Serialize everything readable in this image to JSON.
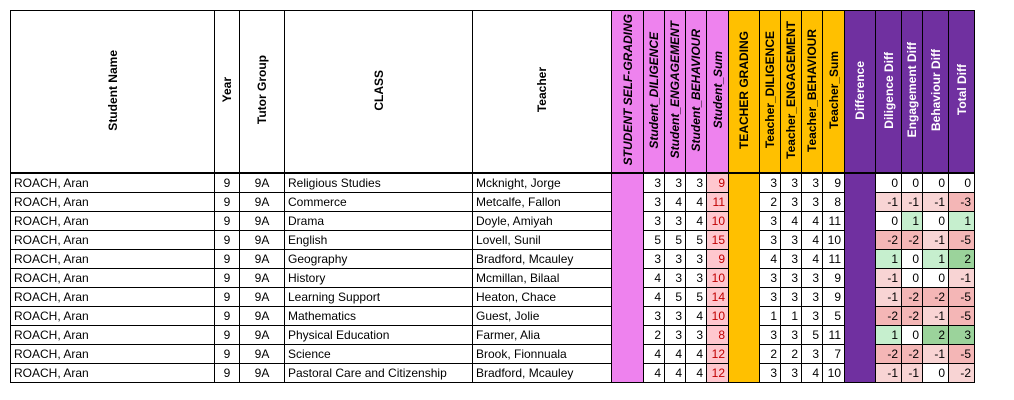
{
  "headers": {
    "student_name": "Student Name",
    "year": "Year",
    "tutor_group": "Tutor Group",
    "class": "CLASS",
    "teacher": "Teacher",
    "student_self_grading": "STUDENT SELF-GRADING",
    "student_diligence": "Student_DILIGENCE",
    "student_engagement": "Student_ENGAGEMENT",
    "student_behaviour": "Student_BEHAVIOUR",
    "student_sum": "Student_Sum",
    "teacher_grading": "TEACHER GRADING",
    "teacher_diligence": "Teacher_DILIGENCE",
    "teacher_engagement": "Teacher_ENGAGEMENT",
    "teacher_behaviour": "Teacher_BEHAVIOUR",
    "teacher_sum": "Teacher_Sum",
    "difference": "Difference",
    "diligence_diff": "Diligence Diff",
    "engagement_diff": "Engagement Diff",
    "behaviour_diff": "Behaviour Diff",
    "total_diff": "Total Diff"
  },
  "rows": [
    {
      "name": "ROACH, Aran",
      "year": "9",
      "tutor": "9A",
      "class": "Religious Studies",
      "teacher": "Mcknight, Jorge",
      "sd": "3",
      "se": "3",
      "sb": "3",
      "ss": "9",
      "td": "3",
      "te": "3",
      "tb": "3",
      "ts": "9",
      "dd": "0",
      "ed": "0",
      "bd": "0",
      "tot": "0"
    },
    {
      "name": "ROACH, Aran",
      "year": "9",
      "tutor": "9A",
      "class": "Commerce",
      "teacher": "Metcalfe, Fallon",
      "sd": "3",
      "se": "4",
      "sb": "4",
      "ss": "11",
      "td": "2",
      "te": "3",
      "tb": "3",
      "ts": "8",
      "dd": "-1",
      "ed": "-1",
      "bd": "-1",
      "tot": "-3"
    },
    {
      "name": "ROACH, Aran",
      "year": "9",
      "tutor": "9A",
      "class": "Drama",
      "teacher": "Doyle, Amiyah",
      "sd": "3",
      "se": "3",
      "sb": "4",
      "ss": "10",
      "td": "3",
      "te": "4",
      "tb": "4",
      "ts": "11",
      "dd": "0",
      "ed": "1",
      "bd": "0",
      "tot": "1"
    },
    {
      "name": "ROACH, Aran",
      "year": "9",
      "tutor": "9A",
      "class": "English",
      "teacher": "Lovell, Sunil",
      "sd": "5",
      "se": "5",
      "sb": "5",
      "ss": "15",
      "td": "3",
      "te": "3",
      "tb": "4",
      "ts": "10",
      "dd": "-2",
      "ed": "-2",
      "bd": "-1",
      "tot": "-5"
    },
    {
      "name": "ROACH, Aran",
      "year": "9",
      "tutor": "9A",
      "class": "Geography",
      "teacher": "Bradford, Mcauley",
      "sd": "3",
      "se": "3",
      "sb": "3",
      "ss": "9",
      "td": "4",
      "te": "3",
      "tb": "4",
      "ts": "11",
      "dd": "1",
      "ed": "0",
      "bd": "1",
      "tot": "2"
    },
    {
      "name": "ROACH, Aran",
      "year": "9",
      "tutor": "9A",
      "class": "History",
      "teacher": "Mcmillan, Bilaal",
      "sd": "4",
      "se": "3",
      "sb": "3",
      "ss": "10",
      "td": "3",
      "te": "3",
      "tb": "3",
      "ts": "9",
      "dd": "-1",
      "ed": "0",
      "bd": "0",
      "tot": "-1"
    },
    {
      "name": "ROACH, Aran",
      "year": "9",
      "tutor": "9A",
      "class": "Learning Support",
      "teacher": "Heaton, Chace",
      "sd": "4",
      "se": "5",
      "sb": "5",
      "ss": "14",
      "td": "3",
      "te": "3",
      "tb": "3",
      "ts": "9",
      "dd": "-1",
      "ed": "-2",
      "bd": "-2",
      "tot": "-5"
    },
    {
      "name": "ROACH, Aran",
      "year": "9",
      "tutor": "9A",
      "class": "Mathematics",
      "teacher": "Guest, Jolie",
      "sd": "3",
      "se": "3",
      "sb": "4",
      "ss": "10",
      "td": "1",
      "te": "1",
      "tb": "3",
      "ts": "5",
      "dd": "-2",
      "ed": "-2",
      "bd": "-1",
      "tot": "-5"
    },
    {
      "name": "ROACH, Aran",
      "year": "9",
      "tutor": "9A",
      "class": "Physical Education",
      "teacher": "Farmer, Alia",
      "sd": "2",
      "se": "3",
      "sb": "3",
      "ss": "8",
      "td": "3",
      "te": "3",
      "tb": "5",
      "ts": "11",
      "dd": "1",
      "ed": "0",
      "bd": "2",
      "tot": "3"
    },
    {
      "name": "ROACH, Aran",
      "year": "9",
      "tutor": "9A",
      "class": "Science",
      "teacher": "Brook, Fionnuala",
      "sd": "4",
      "se": "4",
      "sb": "4",
      "ss": "12",
      "td": "2",
      "te": "2",
      "tb": "3",
      "ts": "7",
      "dd": "-2",
      "ed": "-2",
      "bd": "-1",
      "tot": "-5"
    },
    {
      "name": "ROACH, Aran",
      "year": "9",
      "tutor": "9A",
      "class": "Pastoral Care and Citizenship",
      "teacher": "Bradford, Mcauley",
      "sd": "4",
      "se": "4",
      "sb": "4",
      "ss": "12",
      "td": "3",
      "te": "3",
      "tb": "4",
      "ts": "10",
      "dd": "-1",
      "ed": "-1",
      "bd": "0",
      "tot": "-2"
    }
  ]
}
